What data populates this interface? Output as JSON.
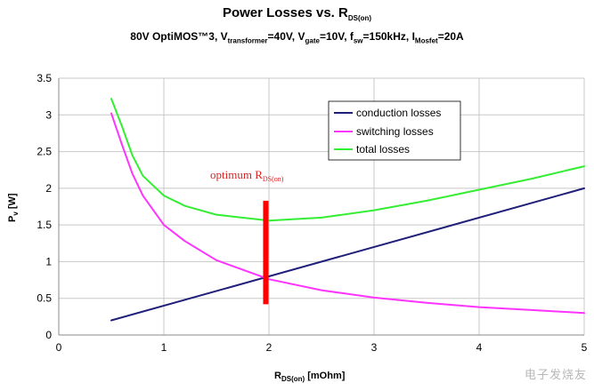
{
  "chart_data": {
    "type": "line",
    "title_main": "Power Losses vs. R",
    "title_sub": "DS(on)",
    "subtitle": {
      "p1": "80V OptiMOS™3, V",
      "s1": "transformer",
      "p2": "=40V, V",
      "s2": "gate",
      "p3": "=10V, f",
      "s3": "sw",
      "p4": "=150kHz, I",
      "s4": "Mosfet",
      "p5": "=20A"
    },
    "xlabel_main": "R",
    "xlabel_sub": "DS(on)",
    "xlabel_unit": " [mOhm]",
    "ylabel_main": "P",
    "ylabel_sub": "v",
    "ylabel_unit": " [W]",
    "xlim": [
      0,
      5
    ],
    "ylim": [
      0,
      3.5
    ],
    "x_ticks": [
      0,
      1,
      2,
      3,
      4,
      5
    ],
    "y_ticks": [
      0,
      0.5,
      1,
      1.5,
      2,
      2.5,
      3,
      3.5
    ],
    "grid": true,
    "legend_position": "top-right",
    "series": [
      {
        "name": "conduction losses",
        "color": "#1f1f7a",
        "x": [
          0.5,
          5
        ],
        "y": [
          0.2,
          2.0
        ]
      },
      {
        "name": "switching losses",
        "color": "#ff33ff",
        "x": [
          0.5,
          0.6,
          0.7,
          0.8,
          1.0,
          1.2,
          1.5,
          2.0,
          2.5,
          3.0,
          3.5,
          4.0,
          4.5,
          5.0
        ],
        "y": [
          3.02,
          2.6,
          2.2,
          1.9,
          1.5,
          1.28,
          1.02,
          0.76,
          0.61,
          0.51,
          0.44,
          0.38,
          0.34,
          0.3
        ]
      },
      {
        "name": "total losses",
        "color": "#33ee33",
        "x": [
          0.5,
          0.6,
          0.7,
          0.8,
          1.0,
          1.2,
          1.5,
          2.0,
          2.5,
          3.0,
          3.5,
          4.0,
          4.5,
          5.0
        ],
        "y": [
          3.22,
          2.85,
          2.45,
          2.17,
          1.9,
          1.76,
          1.64,
          1.56,
          1.6,
          1.7,
          1.83,
          1.98,
          2.13,
          2.3
        ]
      }
    ],
    "annotation": {
      "text_main": "optimum R",
      "text_sub": "DS(on)",
      "x": 1.97,
      "y_range": [
        0.42,
        1.83
      ],
      "color": "#ff0000"
    }
  },
  "watermark": "电子发烧友"
}
